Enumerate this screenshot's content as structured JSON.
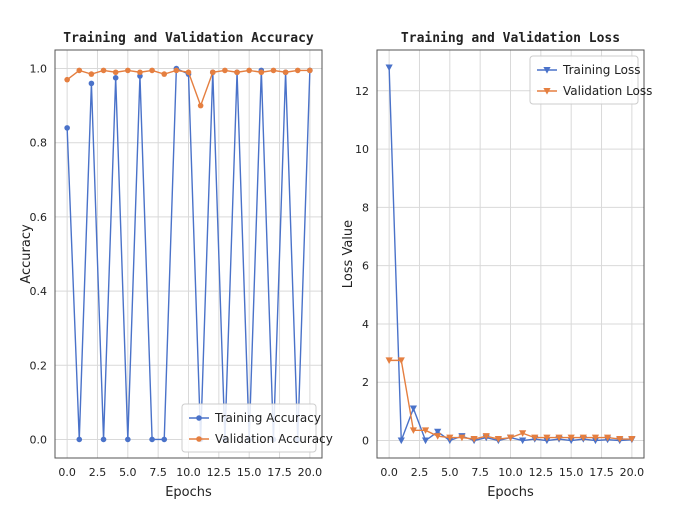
{
  "chart_data": [
    {
      "type": "line",
      "title": "Training and Validation Accuracy",
      "xlabel": "Epochs",
      "ylabel": "Accuracy",
      "xlim": [
        -1,
        21
      ],
      "ylim": [
        -0.05,
        1.05
      ],
      "xticks": [
        0.0,
        2.5,
        5.0,
        7.5,
        10.0,
        12.5,
        15.0,
        17.5,
        20.0
      ],
      "yticks": [
        0.0,
        0.2,
        0.4,
        0.6,
        0.8,
        1.0
      ],
      "grid": true,
      "legend_position": "bottom-right",
      "x": [
        0,
        1,
        2,
        3,
        4,
        5,
        6,
        7,
        8,
        9,
        10,
        11,
        12,
        13,
        14,
        15,
        16,
        17,
        18,
        19,
        20
      ],
      "series": [
        {
          "name": "Training Accuracy",
          "color": "#4a72c9",
          "marker": "circle",
          "values": [
            0.84,
            0.0,
            0.96,
            0.0,
            0.975,
            0.0,
            0.98,
            0.0,
            0.0,
            1.0,
            0.985,
            0.0,
            0.99,
            0.0,
            0.99,
            0.0,
            0.995,
            0.0,
            0.99,
            0.0,
            0.995
          ]
        },
        {
          "name": "Validation Accuracy",
          "color": "#e57f40",
          "marker": "circle",
          "values": [
            0.97,
            0.995,
            0.985,
            0.995,
            0.99,
            0.995,
            0.99,
            0.995,
            0.985,
            0.995,
            0.99,
            0.9,
            0.99,
            0.995,
            0.99,
            0.995,
            0.99,
            0.995,
            0.99,
            0.995,
            0.995
          ]
        }
      ]
    },
    {
      "type": "line",
      "title": "Training and Validation Loss",
      "xlabel": "Epochs",
      "ylabel": "Loss Value",
      "xlim": [
        -1,
        21
      ],
      "ylim": [
        -0.6,
        13.4
      ],
      "xticks": [
        0.0,
        2.5,
        5.0,
        7.5,
        10.0,
        12.5,
        15.0,
        17.5,
        20.0
      ],
      "yticks": [
        0,
        2,
        4,
        6,
        8,
        10,
        12
      ],
      "grid": true,
      "legend_position": "top-right",
      "x": [
        0,
        1,
        2,
        3,
        4,
        5,
        6,
        7,
        8,
        9,
        10,
        11,
        12,
        13,
        14,
        15,
        16,
        17,
        18,
        19,
        20
      ],
      "series": [
        {
          "name": "Training Loss",
          "color": "#4a72c9",
          "marker": "triangle-down",
          "values": [
            12.8,
            0.0,
            1.1,
            0.0,
            0.3,
            0.0,
            0.15,
            0.0,
            0.1,
            0.0,
            0.1,
            0.0,
            0.05,
            0.0,
            0.05,
            0.0,
            0.05,
            0.0,
            0.03,
            0.0,
            0.03
          ]
        },
        {
          "name": "Validation Loss",
          "color": "#e57f40",
          "marker": "triangle-down",
          "values": [
            2.75,
            2.75,
            0.35,
            0.35,
            0.15,
            0.1,
            0.1,
            0.05,
            0.15,
            0.05,
            0.1,
            0.25,
            0.1,
            0.1,
            0.1,
            0.1,
            0.1,
            0.1,
            0.1,
            0.05,
            0.05
          ]
        }
      ]
    }
  ]
}
